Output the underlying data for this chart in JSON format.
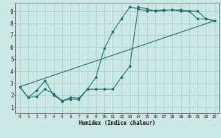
{
  "xlabel": "Humidex (Indice chaleur)",
  "bg_color": "#cce8e4",
  "grid_color": "#aaccca",
  "line_color": "#1a6b6b",
  "xlim": [
    -0.5,
    23.5
  ],
  "ylim": [
    0.5,
    9.7
  ],
  "xticks": [
    0,
    1,
    2,
    3,
    4,
    5,
    6,
    7,
    8,
    9,
    10,
    11,
    12,
    13,
    14,
    15,
    16,
    17,
    18,
    19,
    20,
    21,
    22,
    23
  ],
  "yticks": [
    1,
    2,
    3,
    4,
    5,
    6,
    7,
    8,
    9
  ],
  "line1_x": [
    0,
    1,
    2,
    3,
    4,
    5,
    6,
    7,
    8,
    9,
    10,
    11,
    12,
    13,
    14,
    15,
    16,
    17,
    18,
    19,
    20,
    21,
    22,
    23
  ],
  "line1_y": [
    2.7,
    1.8,
    1.9,
    2.5,
    2.1,
    1.55,
    1.65,
    1.65,
    2.5,
    2.5,
    2.5,
    2.5,
    3.5,
    4.4,
    9.35,
    9.2,
    9.0,
    9.05,
    9.1,
    9.1,
    9.0,
    9.0,
    8.35,
    8.2
  ],
  "line2_x": [
    0,
    1,
    2,
    3,
    4,
    5,
    6,
    7,
    8,
    9,
    10,
    11,
    12,
    13,
    14,
    15,
    16,
    17,
    18,
    19,
    20,
    21,
    22,
    23
  ],
  "line2_y": [
    2.7,
    1.8,
    2.4,
    3.2,
    2.0,
    1.5,
    1.8,
    1.75,
    2.5,
    3.5,
    5.9,
    7.3,
    8.35,
    9.35,
    9.2,
    9.0,
    9.05,
    9.1,
    9.1,
    9.0,
    9.0,
    8.35,
    8.35,
    8.2
  ],
  "line3_x": [
    0,
    23
  ],
  "line3_y": [
    2.7,
    8.2
  ]
}
